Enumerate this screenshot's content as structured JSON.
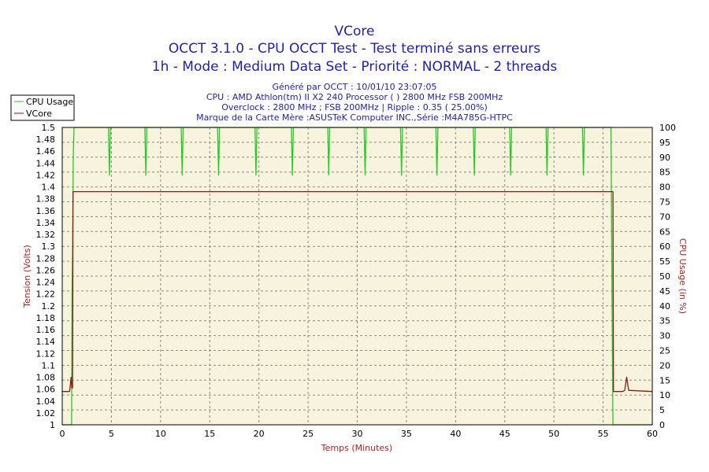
{
  "chart_data": {
    "type": "line",
    "title": "VCore",
    "subtitle_lines": [
      "OCCT 3.1.0 - CPU OCCT Test - Test terminé sans erreurs",
      "1h - Mode : Medium Data Set - Priorité : NORMAL - 2 threads"
    ],
    "info_lines": [
      "Généré par OCCT : 10/01/10 23:07:05",
      "CPU : AMD Athlon(tm) II X2 240 Processor (  ) 2800 MHz FSB 200MHz",
      "Overclock : 2800 MHz ; FSB 200MHz | Ripple : 0.35 ( 25.00%)",
      "Marque de la Carte Mère :ASUSTeK Computer INC.,Série :M4A785G-HTPC"
    ],
    "xlabel": "Temps (Minutes)",
    "ylabel_left": "Tension (Volts)",
    "ylabel_right": "CPU Usage (in %)",
    "xlim": [
      0,
      60
    ],
    "ylim_left": [
      1,
      1.5
    ],
    "ylim_right": [
      0,
      100
    ],
    "x_ticks": [
      "0",
      "5",
      "10",
      "15",
      "20",
      "25",
      "30",
      "35",
      "40",
      "45",
      "50",
      "55",
      "60"
    ],
    "y_left_ticks": [
      "1",
      "1.02",
      "1.04",
      "1.06",
      "1.08",
      "1.1",
      "1.12",
      "1.14",
      "1.16",
      "1.18",
      "1.2",
      "1.22",
      "1.24",
      "1.26",
      "1.28",
      "1.3",
      "1.32",
      "1.34",
      "1.36",
      "1.38",
      "1.4",
      "1.42",
      "1.44",
      "1.46",
      "1.48",
      "1.5"
    ],
    "y_right_ticks": [
      "0",
      "5",
      "10",
      "15",
      "20",
      "25",
      "30",
      "35",
      "40",
      "45",
      "50",
      "55",
      "60",
      "65",
      "70",
      "75",
      "80",
      "85",
      "90",
      "95",
      "100"
    ],
    "grid": true,
    "legend": "top-left",
    "series": [
      {
        "name": "CPU Usage",
        "axis": "right",
        "color": "#22cc22",
        "x": [
          0,
          0.95,
          1.0,
          1.05,
          1.12,
          1.2,
          1.3,
          4.7,
          4.8,
          4.9,
          8.4,
          8.5,
          8.6,
          12.1,
          12.2,
          12.3,
          15.8,
          15.9,
          16.0,
          19.6,
          19.7,
          19.8,
          23.3,
          23.4,
          23.5,
          27.0,
          27.1,
          27.2,
          30.7,
          30.8,
          30.9,
          34.4,
          34.5,
          34.6,
          38.0,
          38.1,
          38.2,
          41.8,
          41.9,
          42.0,
          45.5,
          45.6,
          45.7,
          49.2,
          49.3,
          49.4,
          52.9,
          53.0,
          53.1,
          55.8,
          55.9,
          56.0,
          56.05,
          60
        ],
        "values": [
          0,
          0,
          45,
          58,
          90,
          100,
          100,
          100,
          84,
          100,
          100,
          84,
          100,
          100,
          84,
          100,
          100,
          84,
          100,
          100,
          84,
          100,
          100,
          84,
          100,
          100,
          84,
          100,
          100,
          84,
          100,
          100,
          84,
          100,
          100,
          84,
          100,
          100,
          84,
          100,
          100,
          84,
          100,
          100,
          84,
          100,
          100,
          84,
          100,
          100,
          45,
          0,
          0,
          0
        ]
      },
      {
        "name": "VCore",
        "axis": "left",
        "color": "#8b1a1a",
        "x": [
          0,
          0.75,
          0.82,
          0.9,
          0.97,
          1.05,
          1.1,
          56.0,
          56.05,
          57.0,
          57.2,
          57.4,
          57.6,
          60
        ],
        "values": [
          1.056,
          1.056,
          1.066,
          1.08,
          1.062,
          1.062,
          1.392,
          1.392,
          1.056,
          1.056,
          1.058,
          1.08,
          1.058,
          1.056
        ]
      }
    ]
  }
}
